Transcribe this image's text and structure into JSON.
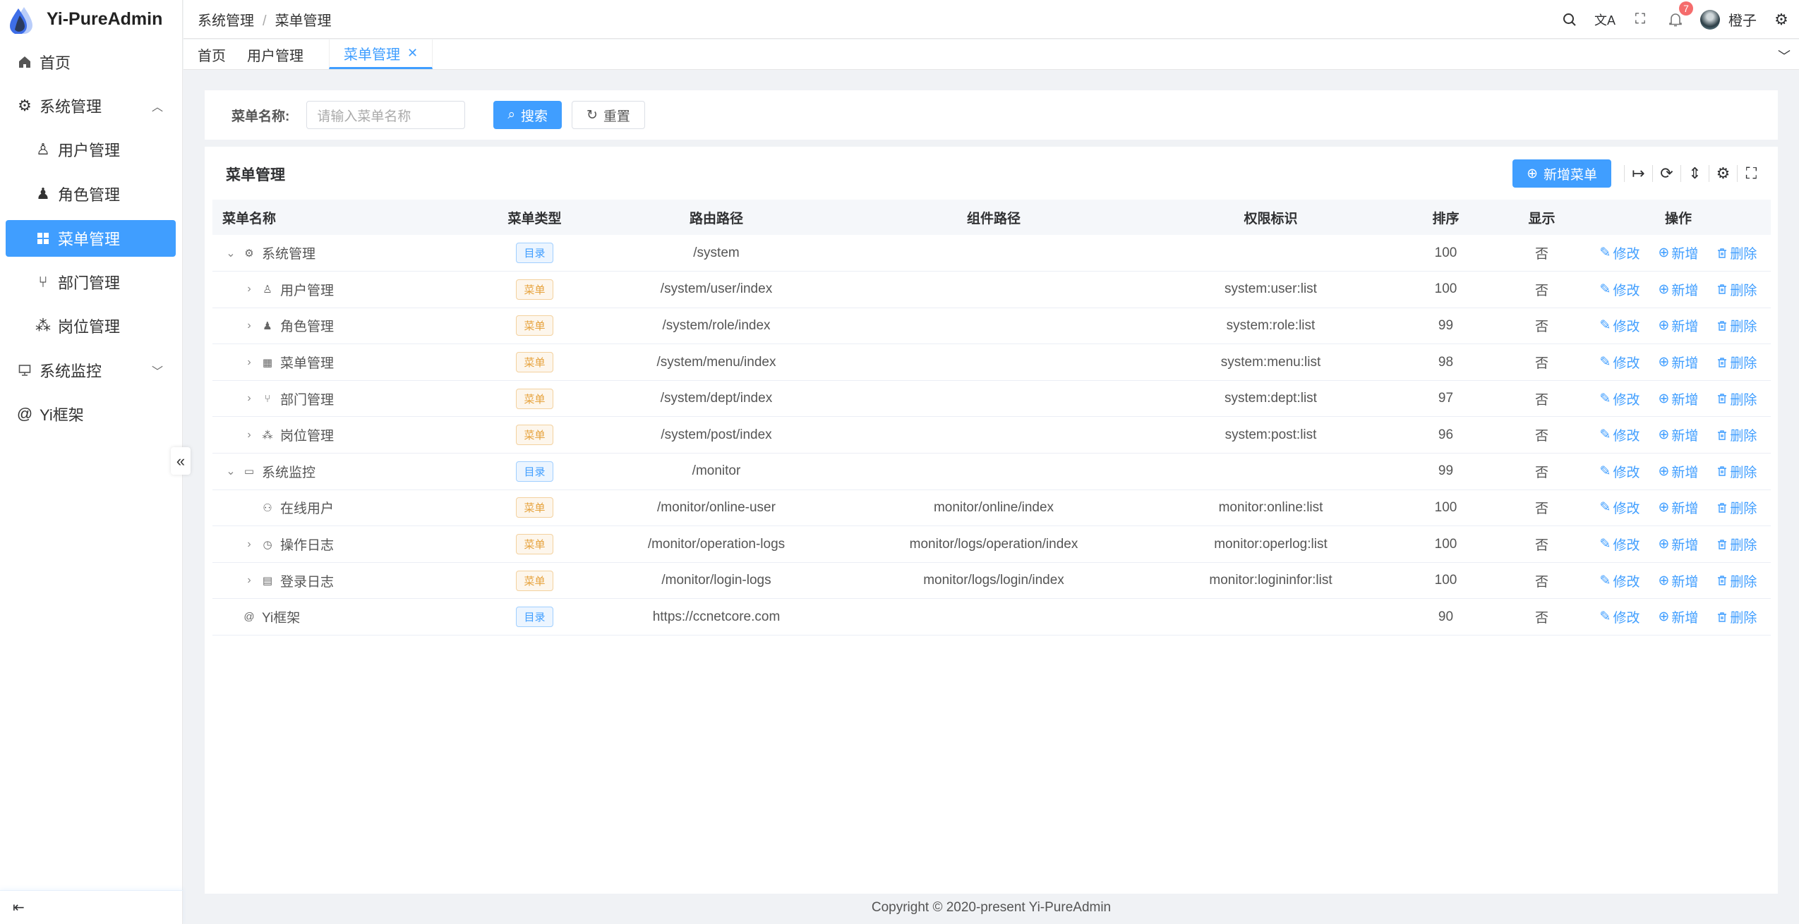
{
  "app": {
    "title": "Yi-PureAdmin"
  },
  "sidebar": {
    "items": [
      {
        "label": "首页",
        "icon": "home-icon"
      },
      {
        "label": "系统管理",
        "icon": "gear-icon",
        "expanded": true
      },
      {
        "label": "用户管理",
        "icon": "user-icon"
      },
      {
        "label": "角色管理",
        "icon": "role-icon"
      },
      {
        "label": "菜单管理",
        "icon": "grid-icon",
        "active": true
      },
      {
        "label": "部门管理",
        "icon": "branch-icon"
      },
      {
        "label": "岗位管理",
        "icon": "org-icon"
      },
      {
        "label": "系统监控",
        "icon": "monitor-icon"
      },
      {
        "label": "Yi框架",
        "icon": "at-icon"
      }
    ]
  },
  "header": {
    "breadcrumb": [
      "系统管理",
      "菜单管理"
    ],
    "notification_count": "7",
    "username": "橙子"
  },
  "tabs": [
    {
      "label": "首页"
    },
    {
      "label": "用户管理"
    },
    {
      "label": "菜单管理",
      "active": true
    }
  ],
  "search": {
    "label": "菜单名称:",
    "placeholder": "请输入菜单名称",
    "search_label": "搜索",
    "reset_label": "重置"
  },
  "table": {
    "title": "菜单管理",
    "add_label": "新增菜单",
    "columns": [
      "菜单名称",
      "菜单类型",
      "路由路径",
      "组件路径",
      "权限标识",
      "排序",
      "显示",
      "操作"
    ],
    "actions": [
      "修改",
      "新增",
      "删除"
    ],
    "rows": [
      {
        "name": "系统管理",
        "level": 0,
        "expand": "open",
        "type": "目录",
        "kind": "dir",
        "route": "/system",
        "component": "",
        "perm": "",
        "sort": "100",
        "show": "否"
      },
      {
        "name": "用户管理",
        "level": 1,
        "expand": "closed",
        "type": "菜单",
        "kind": "menu",
        "route": "/system/user/index",
        "component": "",
        "perm": "system:user:list",
        "sort": "100",
        "show": "否"
      },
      {
        "name": "角色管理",
        "level": 1,
        "expand": "closed",
        "type": "菜单",
        "kind": "menu",
        "route": "/system/role/index",
        "component": "",
        "perm": "system:role:list",
        "sort": "99",
        "show": "否"
      },
      {
        "name": "菜单管理",
        "level": 1,
        "expand": "closed",
        "type": "菜单",
        "kind": "menu",
        "route": "/system/menu/index",
        "component": "",
        "perm": "system:menu:list",
        "sort": "98",
        "show": "否"
      },
      {
        "name": "部门管理",
        "level": 1,
        "expand": "closed",
        "type": "菜单",
        "kind": "menu",
        "route": "/system/dept/index",
        "component": "",
        "perm": "system:dept:list",
        "sort": "97",
        "show": "否"
      },
      {
        "name": "岗位管理",
        "level": 1,
        "expand": "closed",
        "type": "菜单",
        "kind": "menu",
        "route": "/system/post/index",
        "component": "",
        "perm": "system:post:list",
        "sort": "96",
        "show": "否"
      },
      {
        "name": "系统监控",
        "level": 0,
        "expand": "open",
        "type": "目录",
        "kind": "dir",
        "route": "/monitor",
        "component": "",
        "perm": "",
        "sort": "99",
        "show": "否"
      },
      {
        "name": "在线用户",
        "level": 1,
        "expand": "none",
        "type": "菜单",
        "kind": "menu",
        "route": "/monitor/online-user",
        "component": "monitor/online/index",
        "perm": "monitor:online:list",
        "sort": "100",
        "show": "否"
      },
      {
        "name": "操作日志",
        "level": 1,
        "expand": "closed",
        "type": "菜单",
        "kind": "menu",
        "route": "/monitor/operation-logs",
        "component": "monitor/logs/operation/index",
        "perm": "monitor:operlog:list",
        "sort": "100",
        "show": "否"
      },
      {
        "name": "登录日志",
        "level": 1,
        "expand": "closed",
        "type": "菜单",
        "kind": "menu",
        "route": "/monitor/login-logs",
        "component": "monitor/logs/login/index",
        "perm": "monitor:logininfor:list",
        "sort": "100",
        "show": "否"
      },
      {
        "name": "Yi框架",
        "level": 0,
        "expand": "none",
        "type": "目录",
        "kind": "dir",
        "route": "https://ccnetcore.com",
        "component": "",
        "perm": "",
        "sort": "90",
        "show": "否"
      }
    ]
  },
  "footer": {
    "copyright": "Copyright © 2020-present Yi-PureAdmin"
  },
  "colors": {
    "primary": "#409eff",
    "warning": "#e6a23c",
    "danger": "#f56c6c"
  }
}
